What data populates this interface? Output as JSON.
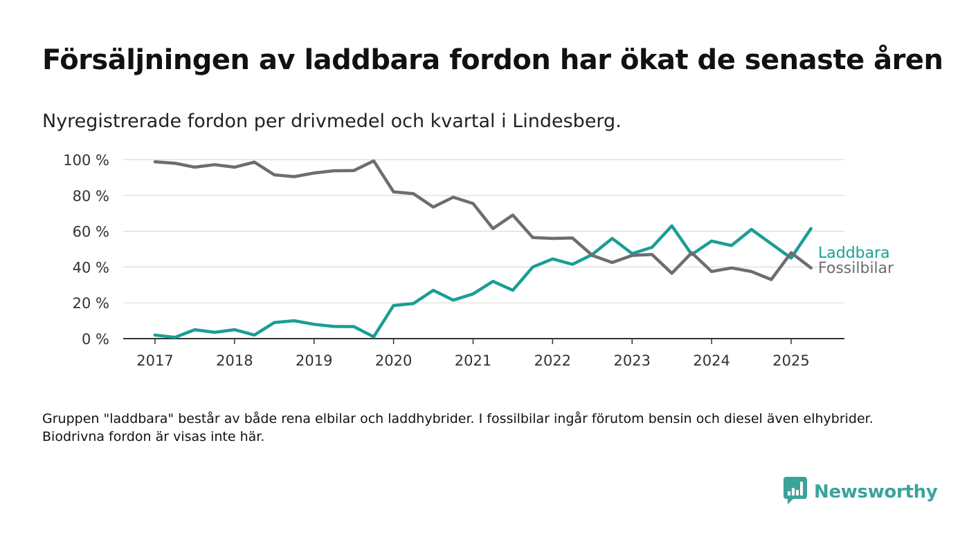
{
  "title": "Försäljningen av laddbara fordon har ökat de senaste åren",
  "subtitle": "Nyregistrerade fordon per drivmedel och kvartal i Lindesberg.",
  "footnote": "Gruppen \"laddbara\" består av både rena elbilar och laddhybrider. I fossilbilar ingår förutom bensin och diesel även elhybrider. Biodrivna fordon är visas inte här.",
  "brand": {
    "name": "Newsworthy",
    "icon": "newsworthy-logo-icon",
    "color": "#3aa39a"
  },
  "chart_data": {
    "type": "line",
    "x_start": 2017,
    "x_step": 0.25,
    "xlim": [
      2016.6,
      2025.67
    ],
    "ylim": [
      0,
      100
    ],
    "x_ticks": [
      2017,
      2018,
      2019,
      2020,
      2021,
      2022,
      2023,
      2024,
      2025
    ],
    "x_tick_labels": [
      "2017",
      "2018",
      "2019",
      "2020",
      "2021",
      "2022",
      "2023",
      "2024",
      "2025"
    ],
    "y_ticks": [
      0,
      20,
      40,
      60,
      80,
      100
    ],
    "y_tick_labels": [
      "0 %",
      "20 %",
      "40 %",
      "60 %",
      "80 %",
      "100 %"
    ],
    "grid": true,
    "legend": "inline-right",
    "series": [
      {
        "name": "Laddbara",
        "color": "#1a9e94",
        "values": [
          2,
          0.7,
          5,
          3.5,
          5,
          2,
          9,
          10,
          8,
          6.8,
          6.7,
          1,
          18.5,
          19.6,
          27,
          21.5,
          25,
          32,
          27,
          40,
          44.5,
          41.5,
          47,
          56,
          47.5,
          51,
          63,
          47,
          54.5,
          52,
          61,
          53,
          45,
          61.5
        ]
      },
      {
        "name": "Fossilbilar",
        "color": "#6c6c72",
        "values": [
          98.8,
          98,
          95.8,
          97.2,
          95.8,
          98.6,
          91.5,
          90.5,
          92.5,
          93.8,
          93.9,
          99.3,
          82,
          81,
          73.5,
          79,
          75.5,
          61.5,
          69,
          56.5,
          56,
          56.2,
          46.5,
          42.5,
          46.5,
          47,
          36.5,
          48,
          37.5,
          39.5,
          37.5,
          33,
          48,
          39.5
        ]
      }
    ]
  }
}
